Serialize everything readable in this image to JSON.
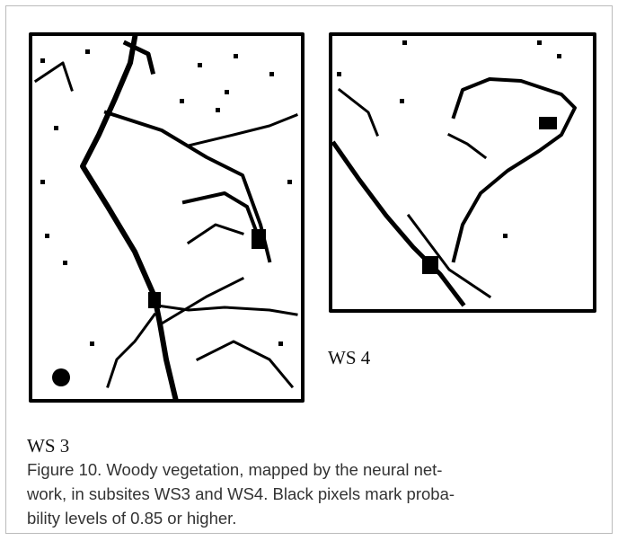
{
  "figure": {
    "panels": [
      {
        "label": "WS 3"
      },
      {
        "label": "WS 4"
      }
    ],
    "caption": {
      "lines": [
        "Figure 10. Woody vegetation, mapped by the neural net-",
        "work, in subsites WS3 and WS4. Black pixels mark proba-",
        "bility levels of 0.85 or higher."
      ]
    }
  }
}
